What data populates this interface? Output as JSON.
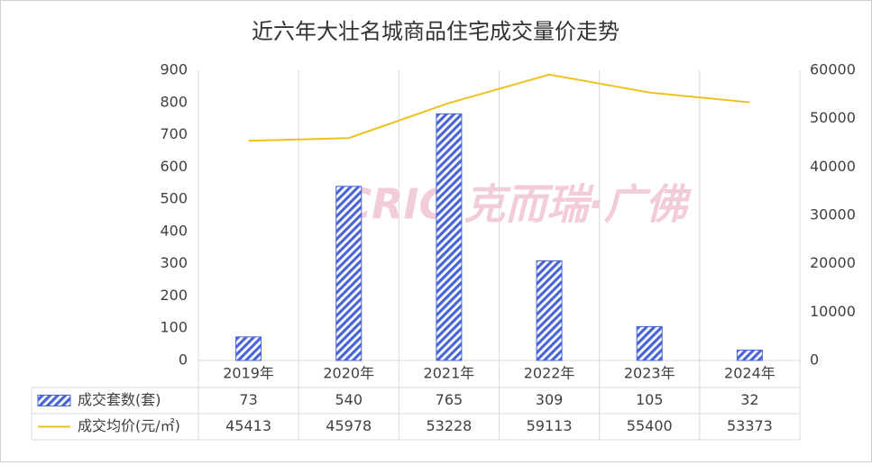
{
  "chart_data": {
    "type": "bar",
    "title": "近六年大壮名城商品住宅成交量价走势",
    "watermark": "CRIC 克而瑞·广佛",
    "categories": [
      "2019年",
      "2020年",
      "2021年",
      "2022年",
      "2023年",
      "2024年"
    ],
    "series": [
      {
        "name": "成交套数(套)",
        "type": "bar",
        "color": "#4a66d6",
        "values": [
          73,
          540,
          765,
          309,
          105,
          32
        ]
      },
      {
        "name": "成交均价(元/㎡)",
        "type": "line",
        "axis": "y2",
        "color": "#f0c020",
        "values": [
          45413,
          45978,
          53228,
          59113,
          55400,
          53373
        ]
      }
    ],
    "ylim": [
      0,
      900
    ],
    "yticks": [
      0,
      100,
      200,
      300,
      400,
      500,
      600,
      700,
      800,
      900
    ],
    "y2lim": [
      0,
      60000
    ],
    "y2ticks": [
      0,
      10000,
      20000,
      30000,
      40000,
      50000,
      60000
    ],
    "grid": true,
    "data_table": true
  }
}
